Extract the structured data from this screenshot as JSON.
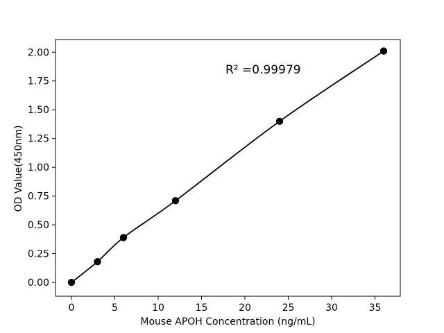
{
  "chart_data": {
    "type": "scatter",
    "title": "",
    "x": [
      0,
      3,
      6,
      12,
      24,
      36
    ],
    "y": [
      0.0,
      0.18,
      0.39,
      0.71,
      1.4,
      2.01
    ],
    "xlabel": "Mouse APOH Concentration (ng/mL)",
    "ylabel": "OD Value(450nm)",
    "annotation": {
      "text": "R² =0.99979",
      "x": 22.1,
      "y": 1.85
    },
    "xticks": {
      "values": [
        0,
        5,
        10,
        15,
        20,
        25,
        30,
        35
      ],
      "labels": [
        "0",
        "5",
        "10",
        "15",
        "20",
        "25",
        "30",
        "35"
      ]
    },
    "yticks": {
      "values": [
        0,
        0.25,
        0.5,
        0.75,
        1.0,
        1.25,
        1.5,
        1.75,
        2.0
      ],
      "labels": [
        "0.00",
        "0.25",
        "0.50",
        "0.75",
        "1.00",
        "1.25",
        "1.50",
        "1.75",
        "2.00"
      ]
    },
    "xlim": [
      -1.84,
      37.92
    ],
    "ylim": [
      -0.12,
      2.11
    ],
    "grid": false,
    "line_color": "#000000",
    "marker_color": "#000000",
    "text_color": "#000000",
    "background": "#ffffff",
    "marker": "circle",
    "line_style": "solid"
  }
}
